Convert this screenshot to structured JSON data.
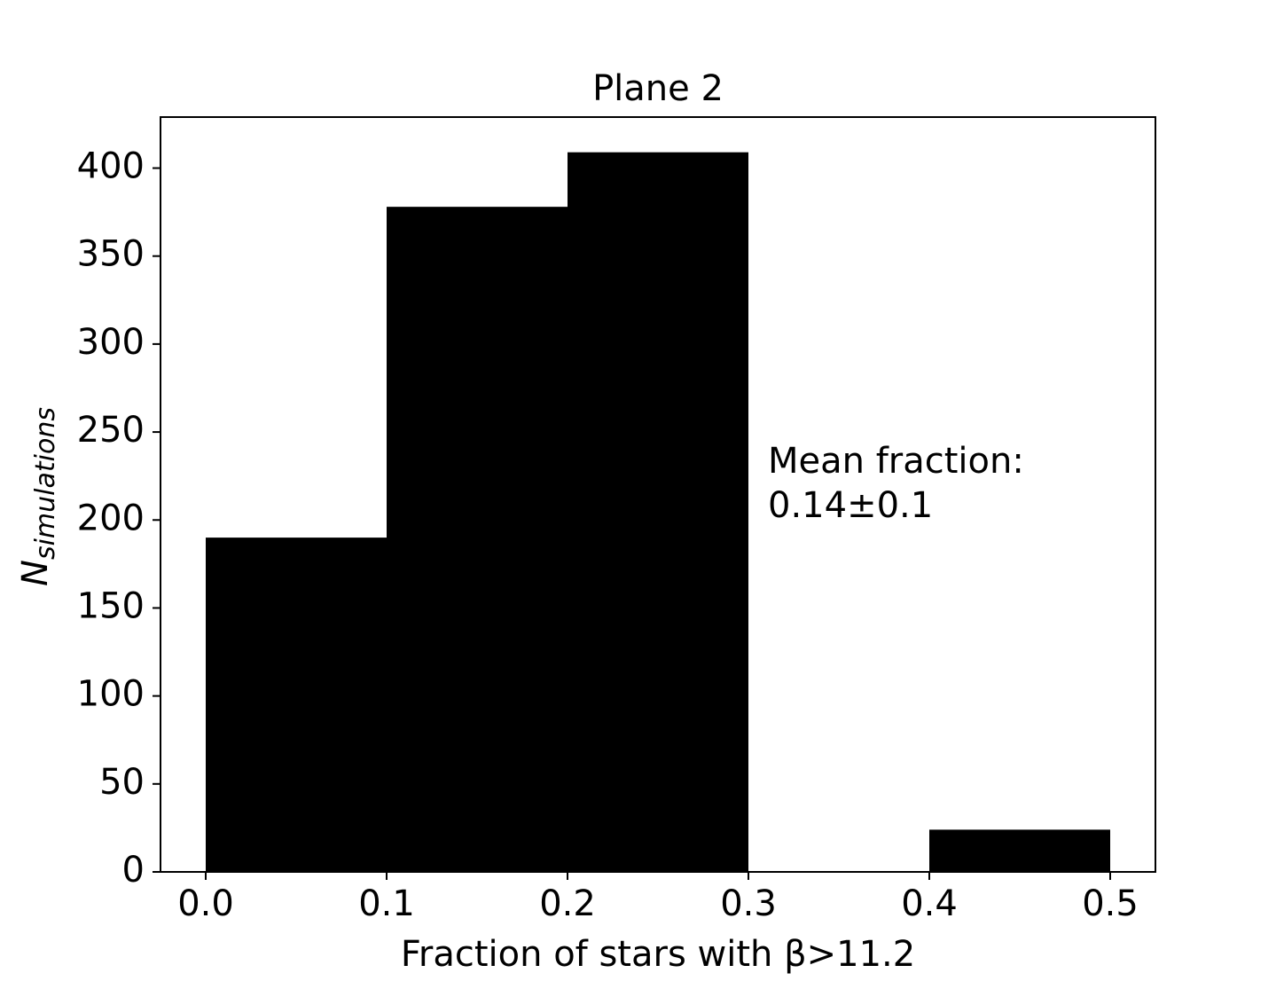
{
  "chart_data": {
    "type": "histogram",
    "title": "Plane 2",
    "xlabel": "Fraction of stars with β>11.2",
    "ylabel": "N",
    "ylabel_sub": "simulations",
    "bins": [
      0,
      0.1,
      0.2,
      0.3,
      0.4,
      0.5
    ],
    "counts": [
      190,
      378,
      409,
      0,
      24
    ],
    "color": "#000000",
    "xlim": [
      -0.025,
      0.525
    ],
    "ylim": [
      0,
      429
    ],
    "xticks": [
      {
        "value": 0,
        "label": "0.0"
      },
      0.1,
      0.2,
      0.3,
      0.4,
      0.5
    ],
    "yticks": [
      0,
      50,
      100,
      150,
      200,
      250,
      300,
      350,
      400
    ],
    "annotation": [
      "Mean fraction:",
      "0.14±0.1"
    ]
  }
}
